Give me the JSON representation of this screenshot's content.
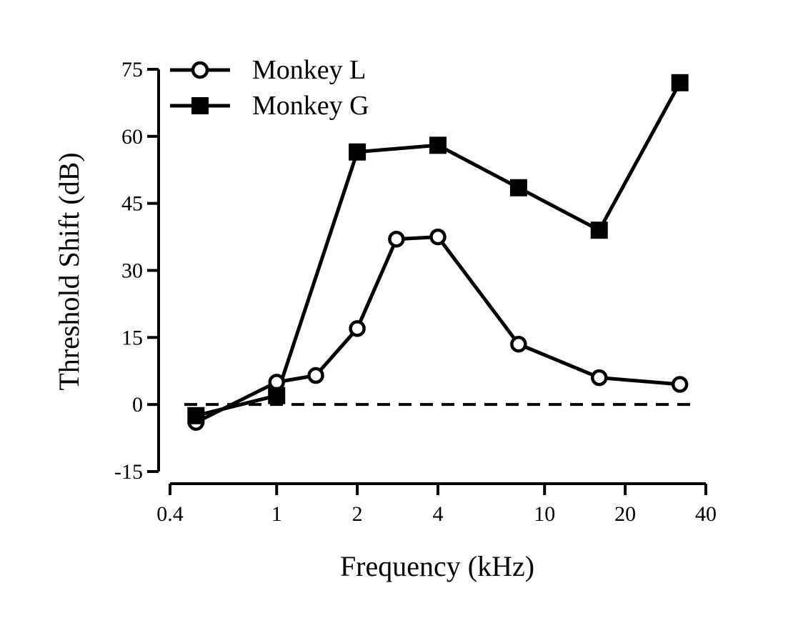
{
  "chart_data": {
    "type": "line",
    "xlabel": "Frequency (kHz)",
    "ylabel": "Threshold Shift (dB)",
    "xscale": "log",
    "xlim": [
      0.4,
      40
    ],
    "ylim": [
      -15,
      75
    ],
    "xticks": [
      0.4,
      1,
      2,
      4,
      10,
      20,
      40
    ],
    "xtick_labels": [
      "0.4",
      "1",
      "2",
      "4",
      "10",
      "20",
      "40"
    ],
    "yticks": [
      -15,
      0,
      15,
      30,
      45,
      60,
      75
    ],
    "ytick_labels": [
      "-15",
      "0",
      "15",
      "30",
      "45",
      "60",
      "75"
    ],
    "reference_line": {
      "y": 0,
      "style": "dashed"
    },
    "legend_position": "top-left",
    "grid": false,
    "series": [
      {
        "name": "Monkey L",
        "marker": "open-circle",
        "x": [
          0.5,
          1,
          1.4,
          2,
          2.8,
          4,
          8,
          16,
          32
        ],
        "y": [
          -4,
          5,
          6.5,
          17,
          37,
          37.5,
          13.5,
          6,
          4.5
        ]
      },
      {
        "name": "Monkey G",
        "marker": "filled-square",
        "x": [
          0.5,
          1,
          2,
          4,
          8,
          16,
          32
        ],
        "y": [
          -2.5,
          2,
          56.5,
          58,
          48.5,
          39,
          72
        ]
      }
    ]
  }
}
